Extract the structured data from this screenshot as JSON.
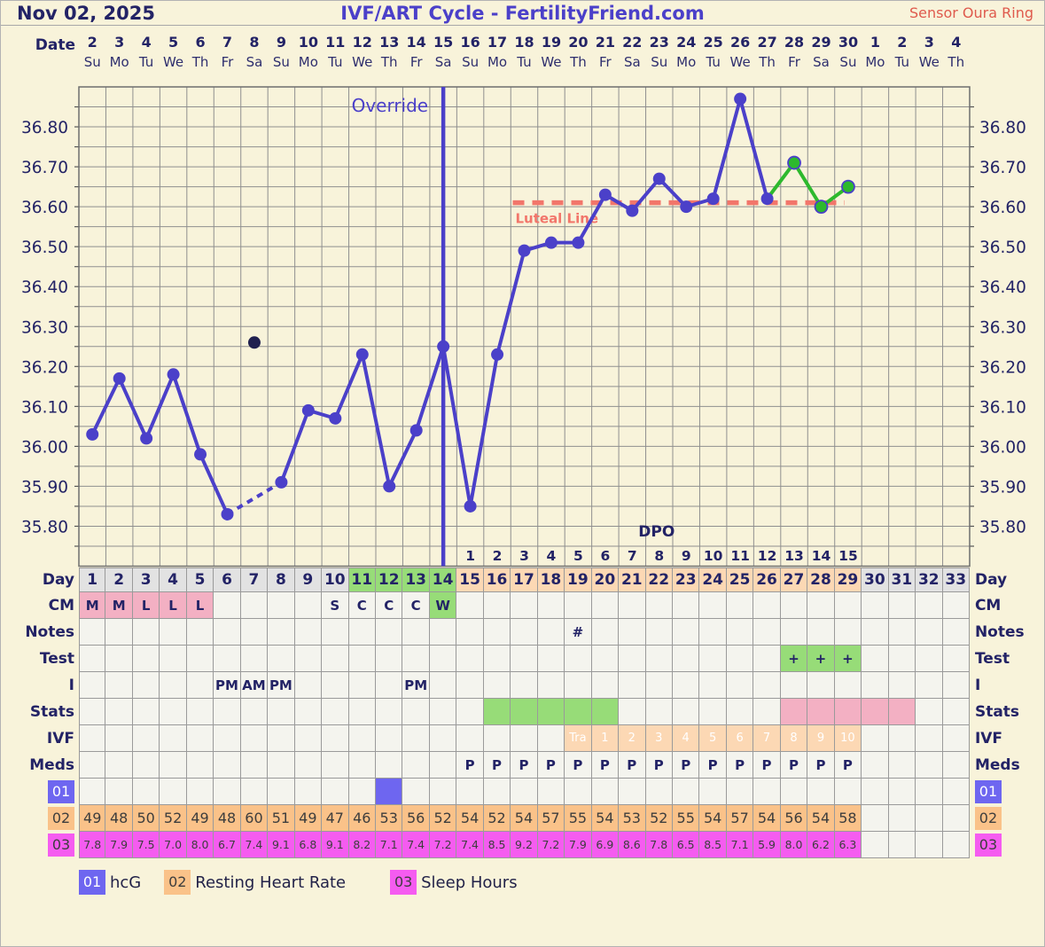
{
  "header": {
    "date": "Nov 02, 2025",
    "title": "IVF/ART Cycle - FertilityFriend.com",
    "sensor": "Sensor Oura Ring"
  },
  "calendar": {
    "label": "Date",
    "dates": [
      2,
      3,
      4,
      5,
      6,
      7,
      8,
      9,
      10,
      11,
      12,
      13,
      14,
      15,
      16,
      17,
      18,
      19,
      20,
      21,
      22,
      23,
      24,
      25,
      26,
      27,
      28,
      29,
      30,
      1,
      2,
      3,
      4
    ],
    "weekdays": [
      "Su",
      "Mo",
      "Tu",
      "We",
      "Th",
      "Fr",
      "Sa",
      "Su",
      "Mo",
      "Tu",
      "We",
      "Th",
      "Fr",
      "Sa",
      "Su",
      "Mo",
      "Tu",
      "We",
      "Th",
      "Fr",
      "Sa",
      "Su",
      "Mo",
      "Tu",
      "We",
      "Th",
      "Fr",
      "Sa",
      "Su",
      "Mo",
      "Tu",
      "We",
      "Th"
    ]
  },
  "chart_data": {
    "type": "line",
    "title": "IVF/ART Cycle - FertilityFriend.com",
    "days_total": 33,
    "y_range": [
      35.7,
      36.9
    ],
    "y_ticks": [
      "36.80",
      "36.70",
      "36.60",
      "36.50",
      "36.40",
      "36.30",
      "36.20",
      "36.10",
      "36.00",
      "35.90",
      "35.80"
    ],
    "grid_step": 0.05,
    "points": [
      {
        "day": 1,
        "temp": 36.03
      },
      {
        "day": 2,
        "temp": 36.17
      },
      {
        "day": 3,
        "temp": 36.02
      },
      {
        "day": 4,
        "temp": 36.18
      },
      {
        "day": 5,
        "temp": 35.98
      },
      {
        "day": 6,
        "temp": 35.83
      },
      {
        "day": 8,
        "temp": 35.91
      },
      {
        "day": 9,
        "temp": 36.09
      },
      {
        "day": 10,
        "temp": 36.07
      },
      {
        "day": 11,
        "temp": 36.23
      },
      {
        "day": 12,
        "temp": 35.9
      },
      {
        "day": 13,
        "temp": 36.04
      },
      {
        "day": 14,
        "temp": 36.25
      },
      {
        "day": 15,
        "temp": 35.85
      },
      {
        "day": 16,
        "temp": 36.23
      },
      {
        "day": 17,
        "temp": 36.49
      },
      {
        "day": 18,
        "temp": 36.51
      },
      {
        "day": 19,
        "temp": 36.51
      },
      {
        "day": 20,
        "temp": 36.63
      },
      {
        "day": 21,
        "temp": 36.59
      },
      {
        "day": 22,
        "temp": 36.67
      },
      {
        "day": 23,
        "temp": 36.6
      },
      {
        "day": 24,
        "temp": 36.62
      },
      {
        "day": 25,
        "temp": 36.87
      },
      {
        "day": 26,
        "temp": 36.62
      },
      {
        "day": 27,
        "temp": 36.71
      },
      {
        "day": 28,
        "temp": 36.6
      },
      {
        "day": 29,
        "temp": 36.65
      }
    ],
    "discarded_point": {
      "day": 7,
      "temp": 36.26
    },
    "green_from_day": 27,
    "override_marker": {
      "day": 14,
      "label": "Override"
    },
    "luteal_line": {
      "temp": 36.61,
      "label": "Luteal Line",
      "from_day": 17,
      "to_day": 29
    },
    "dpo": {
      "label": "DPO",
      "first_day": 15,
      "numbers": [
        1,
        2,
        3,
        4,
        5,
        6,
        7,
        8,
        9,
        10,
        11,
        12,
        13,
        14,
        15
      ]
    }
  },
  "table": {
    "day_colors": [
      {
        "from": 1,
        "to": 10,
        "bg": "grey"
      },
      {
        "from": 11,
        "to": 14,
        "bg": "green"
      },
      {
        "from": 15,
        "to": 29,
        "bg": "peach"
      },
      {
        "from": 30,
        "to": 33,
        "bg": "grey"
      }
    ],
    "rows": [
      {
        "key": "day",
        "label": "Day",
        "cls": "row-day",
        "type": "day"
      },
      {
        "key": "cm",
        "label": "CM",
        "cls": "row-letters",
        "cells": {
          "1": [
            "M",
            "pink"
          ],
          "2": [
            "M",
            "pink"
          ],
          "3": [
            "L",
            "pink"
          ],
          "4": [
            "L",
            "pink"
          ],
          "5": [
            "L",
            "pink"
          ],
          "10": [
            "S",
            ""
          ],
          "11": [
            "C",
            ""
          ],
          "12": [
            "C",
            ""
          ],
          "13": [
            "C",
            ""
          ],
          "14": [
            "W",
            "green"
          ]
        }
      },
      {
        "key": "notes",
        "label": "Notes",
        "cls": "row-letters",
        "cells": {
          "19": [
            "#",
            ""
          ]
        }
      },
      {
        "key": "test",
        "label": "Test",
        "cls": "row-letters",
        "cells": {
          "27": [
            "+",
            "green"
          ],
          "28": [
            "+",
            "green"
          ],
          "29": [
            "+",
            "green"
          ]
        }
      },
      {
        "key": "i",
        "label": "I",
        "cls": "row-letters",
        "cells": {
          "6": [
            "PM",
            ""
          ],
          "7": [
            "AM",
            ""
          ],
          "8": [
            "PM",
            ""
          ],
          "13": [
            "PM",
            ""
          ]
        }
      },
      {
        "key": "stats",
        "label": "Stats",
        "cls": "row-letters",
        "cells": {
          "16": [
            "",
            "green"
          ],
          "17": [
            "",
            "green"
          ],
          "18": [
            "",
            "green"
          ],
          "19": [
            "",
            "green"
          ],
          "20": [
            "",
            "green"
          ],
          "27": [
            "",
            "pink"
          ],
          "28": [
            "",
            "pink"
          ],
          "29": [
            "",
            "pink"
          ],
          "30": [
            "",
            "pink"
          ],
          "31": [
            "",
            "pink"
          ]
        }
      },
      {
        "key": "ivf",
        "label": "IVF",
        "cls": "row-ivf",
        "cells": {
          "19": [
            "Tra",
            "peach"
          ],
          "20": [
            "1",
            "peach"
          ],
          "21": [
            "2",
            "peach"
          ],
          "22": [
            "3",
            "peach"
          ],
          "23": [
            "4",
            "peach"
          ],
          "24": [
            "5",
            "peach"
          ],
          "25": [
            "6",
            "peach"
          ],
          "26": [
            "7",
            "peach"
          ],
          "27": [
            "8",
            "peach"
          ],
          "28": [
            "9",
            "peach"
          ],
          "29": [
            "10",
            "peach"
          ]
        }
      },
      {
        "key": "meds",
        "label": "Meds",
        "cls": "row-letters",
        "range": {
          "from": 15,
          "to": 29,
          "text": "P"
        }
      },
      {
        "key": "r01",
        "label": "01",
        "label_bg": "blue",
        "cls": "row-vals",
        "cells": {
          "12": [
            "",
            "blue"
          ]
        }
      },
      {
        "key": "r02",
        "label": "02",
        "label_bg": "orange",
        "cls": "row-vals",
        "fill_bg": "orange",
        "values": [
          "49",
          "48",
          "50",
          "52",
          "49",
          "48",
          "60",
          "51",
          "49",
          "47",
          "46",
          "53",
          "56",
          "52",
          "54",
          "52",
          "54",
          "57",
          "55",
          "54",
          "53",
          "52",
          "55",
          "54",
          "57",
          "54",
          "56",
          "54",
          "58"
        ]
      },
      {
        "key": "r03",
        "label": "03",
        "label_bg": "magenta",
        "cls": "row-vals-sm",
        "fill_bg": "magenta",
        "values": [
          "7.8",
          "7.9",
          "7.5",
          "7.0",
          "8.0",
          "6.7",
          "7.4",
          "9.1",
          "6.8",
          "9.1",
          "8.2",
          "7.1",
          "7.4",
          "7.2",
          "7.4",
          "8.5",
          "9.2",
          "7.2",
          "7.9",
          "6.9",
          "8.6",
          "7.8",
          "6.5",
          "8.5",
          "7.1",
          "5.9",
          "8.0",
          "6.2",
          "6.3"
        ]
      }
    ]
  },
  "legend": [
    {
      "code": "01",
      "label": "hcG",
      "bg": "blue"
    },
    {
      "code": "02",
      "label": "Resting Heart Rate",
      "bg": "orange"
    },
    {
      "code": "03",
      "label": "Sleep Hours",
      "bg": "magenta"
    }
  ],
  "colors": {
    "background": "#f8f3da",
    "navy": "#232366",
    "line_blue": "#4b40c9",
    "line_green": "#2db92d",
    "discarded_dot": "#20204f",
    "luteal_salmon": "#f2766b",
    "sensor_red": "#df5a4d",
    "grid": "#8f8f8f",
    "cell_bg": "#f4f4ee",
    "cell_border": "#9a9a9a",
    "day_grey": "#e2e2e2",
    "green": "#97dc78",
    "peach": "#fcd8b4",
    "pink": "#f3b0c3",
    "blue_chip": "#6e66f0",
    "orange_chip": "#fac289",
    "magenta_chip": "#f55cf0"
  }
}
